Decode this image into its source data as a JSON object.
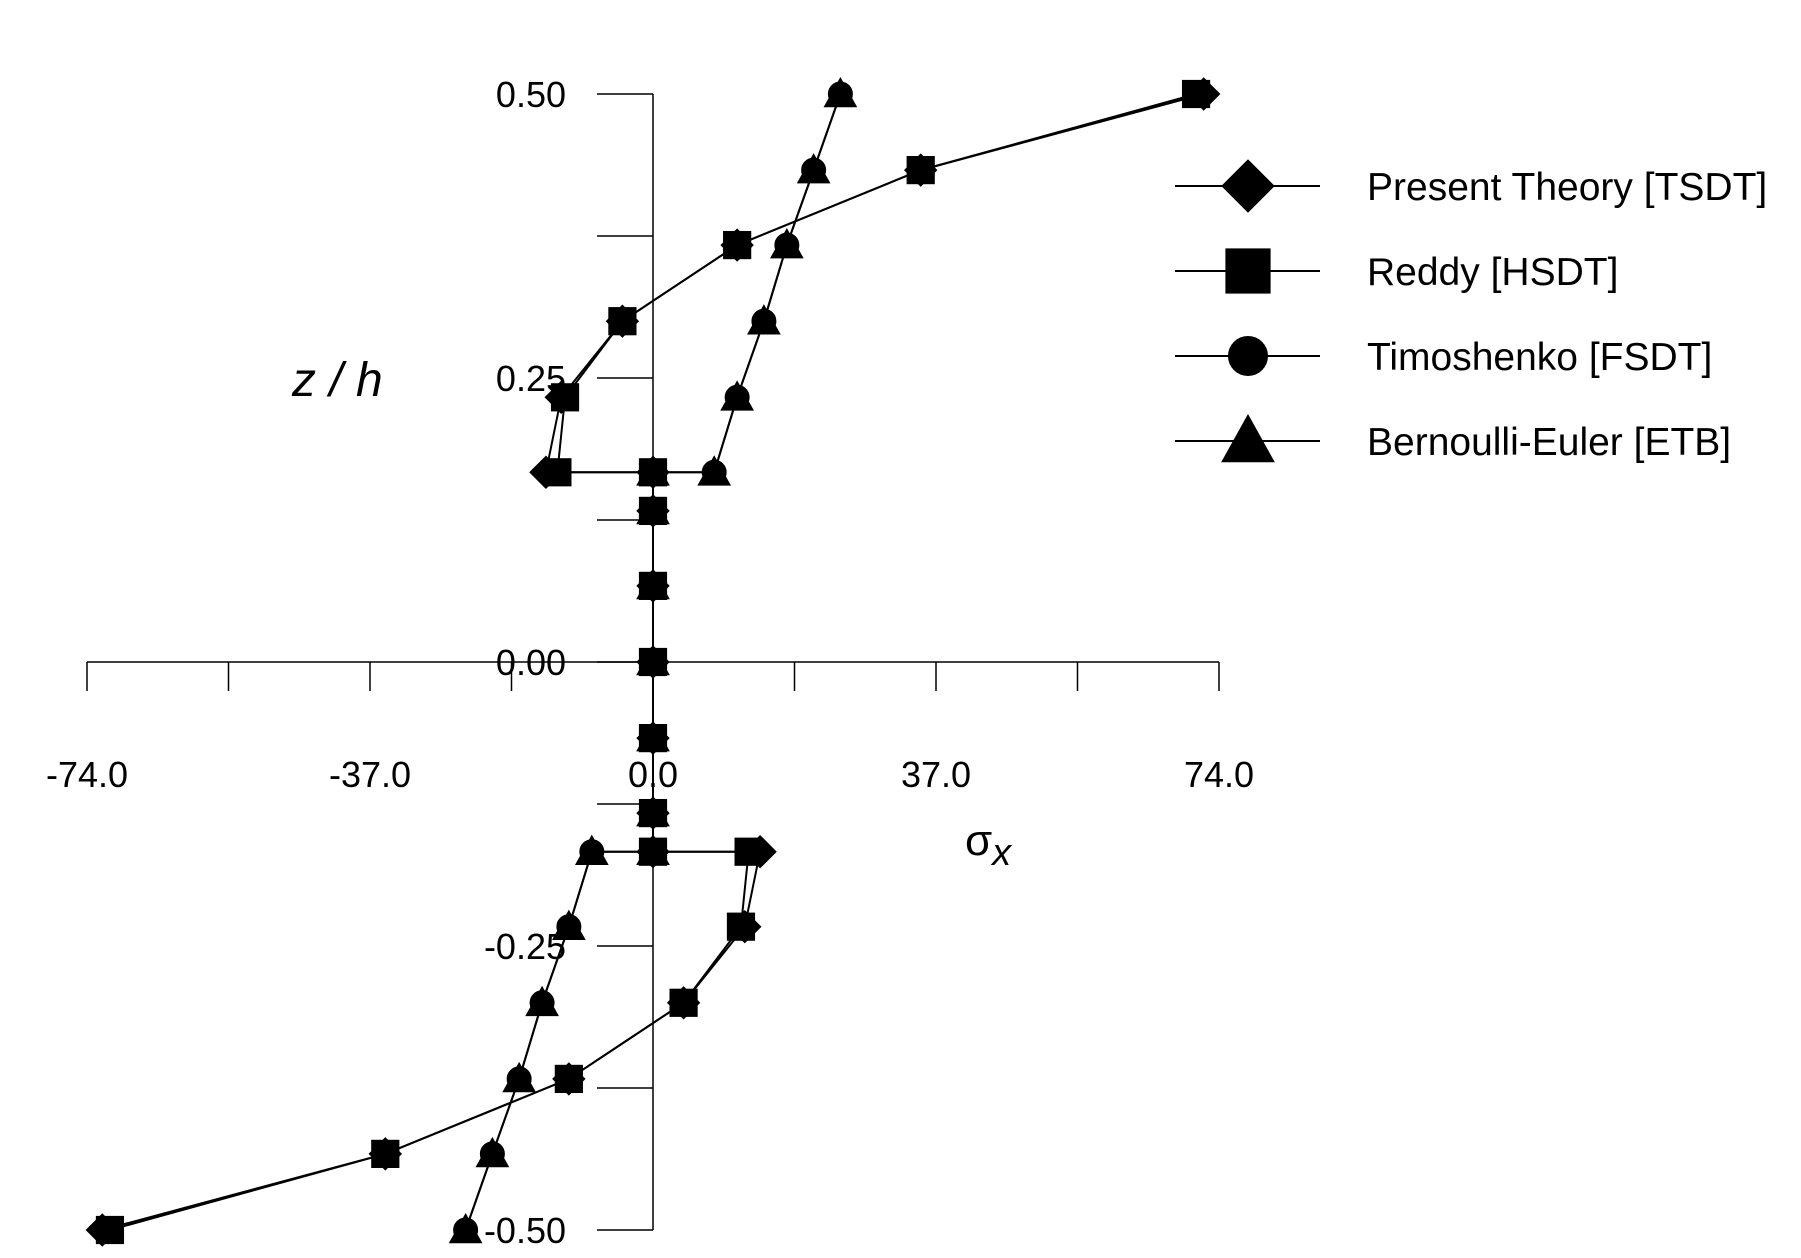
{
  "chart_data": {
    "type": "line",
    "xlabel": "σ",
    "xlabel_subscript": "x",
    "ylabel": "z / h",
    "xlim": [
      -74.0,
      74.0
    ],
    "ylim": [
      -0.5,
      0.5
    ],
    "xticks": [
      -74.0,
      -55.5,
      -37.0,
      -18.5,
      0.0,
      18.5,
      37.0,
      55.5,
      74.0
    ],
    "xtick_labels": [
      "-74.0",
      "-37.0",
      "0.0",
      "37.0",
      "74.0"
    ],
    "xtick_label_values": [
      -74.0,
      -37.0,
      0.0,
      37.0,
      74.0
    ],
    "yticks": [
      -0.5,
      -0.375,
      -0.25,
      -0.125,
      0.0,
      0.125,
      0.25,
      0.375,
      0.5
    ],
    "ytick_labels": [
      "-0.50",
      "-0.25",
      "0.00",
      "0.25",
      "0.50"
    ],
    "ytick_label_values": [
      -0.5,
      -0.25,
      0.0,
      0.25,
      0.5
    ],
    "legend_position": "top-right",
    "series": [
      {
        "name": "Present Theory [TSDT]",
        "marker": "diamond",
        "points": [
          [
            72.0,
            0.5
          ],
          [
            35.0,
            0.433
          ],
          [
            11.0,
            0.367
          ],
          [
            -4.0,
            0.3
          ],
          [
            -12.0,
            0.233
          ],
          [
            -14.0,
            0.167
          ],
          [
            0.0,
            0.167
          ],
          [
            0.0,
            0.133
          ],
          [
            0.0,
            0.067
          ],
          [
            0.0,
            0.0
          ],
          [
            0.0,
            -0.067
          ],
          [
            0.0,
            -0.133
          ],
          [
            0.0,
            -0.167
          ],
          [
            14.0,
            -0.167
          ],
          [
            12.0,
            -0.233
          ],
          [
            4.0,
            -0.3
          ],
          [
            -11.0,
            -0.367
          ],
          [
            -35.0,
            -0.433
          ],
          [
            -72.0,
            -0.5
          ]
        ]
      },
      {
        "name": "Reddy [HSDT]",
        "marker": "square",
        "points": [
          [
            71.0,
            0.5
          ],
          [
            35.0,
            0.433
          ],
          [
            11.0,
            0.367
          ],
          [
            -4.0,
            0.3
          ],
          [
            -11.5,
            0.233
          ],
          [
            -12.5,
            0.167
          ],
          [
            0.0,
            0.167
          ],
          [
            0.0,
            0.133
          ],
          [
            0.0,
            0.067
          ],
          [
            0.0,
            0.0
          ],
          [
            0.0,
            -0.067
          ],
          [
            0.0,
            -0.133
          ],
          [
            0.0,
            -0.167
          ],
          [
            12.5,
            -0.167
          ],
          [
            11.5,
            -0.233
          ],
          [
            4.0,
            -0.3
          ],
          [
            -11.0,
            -0.367
          ],
          [
            -35.0,
            -0.433
          ],
          [
            -71.0,
            -0.5
          ]
        ]
      },
      {
        "name": "Timoshenko [FSDT]",
        "marker": "circle",
        "points": [
          [
            24.5,
            0.5
          ],
          [
            21.0,
            0.433
          ],
          [
            17.5,
            0.367
          ],
          [
            14.5,
            0.3
          ],
          [
            11.0,
            0.233
          ],
          [
            8.0,
            0.167
          ],
          [
            0.0,
            0.167
          ],
          [
            0.0,
            0.133
          ],
          [
            0.0,
            0.067
          ],
          [
            0.0,
            0.0
          ],
          [
            0.0,
            -0.067
          ],
          [
            0.0,
            -0.133
          ],
          [
            0.0,
            -0.167
          ],
          [
            -8.0,
            -0.167
          ],
          [
            -11.0,
            -0.233
          ],
          [
            -14.5,
            -0.3
          ],
          [
            -17.5,
            -0.367
          ],
          [
            -21.0,
            -0.433
          ],
          [
            -24.5,
            -0.5
          ]
        ]
      },
      {
        "name": "Bernoulli-Euler [ETB]",
        "marker": "triangle",
        "points": [
          [
            24.5,
            0.5
          ],
          [
            21.0,
            0.433
          ],
          [
            17.5,
            0.367
          ],
          [
            14.5,
            0.3
          ],
          [
            11.0,
            0.233
          ],
          [
            8.0,
            0.167
          ],
          [
            0.0,
            0.167
          ],
          [
            0.0,
            0.133
          ],
          [
            0.0,
            0.067
          ],
          [
            0.0,
            0.0
          ],
          [
            0.0,
            -0.067
          ],
          [
            0.0,
            -0.133
          ],
          [
            0.0,
            -0.167
          ],
          [
            -8.0,
            -0.167
          ],
          [
            -11.0,
            -0.233
          ],
          [
            -14.5,
            -0.3
          ],
          [
            -17.5,
            -0.367
          ],
          [
            -21.0,
            -0.433
          ],
          [
            -24.5,
            -0.5
          ]
        ]
      }
    ]
  }
}
